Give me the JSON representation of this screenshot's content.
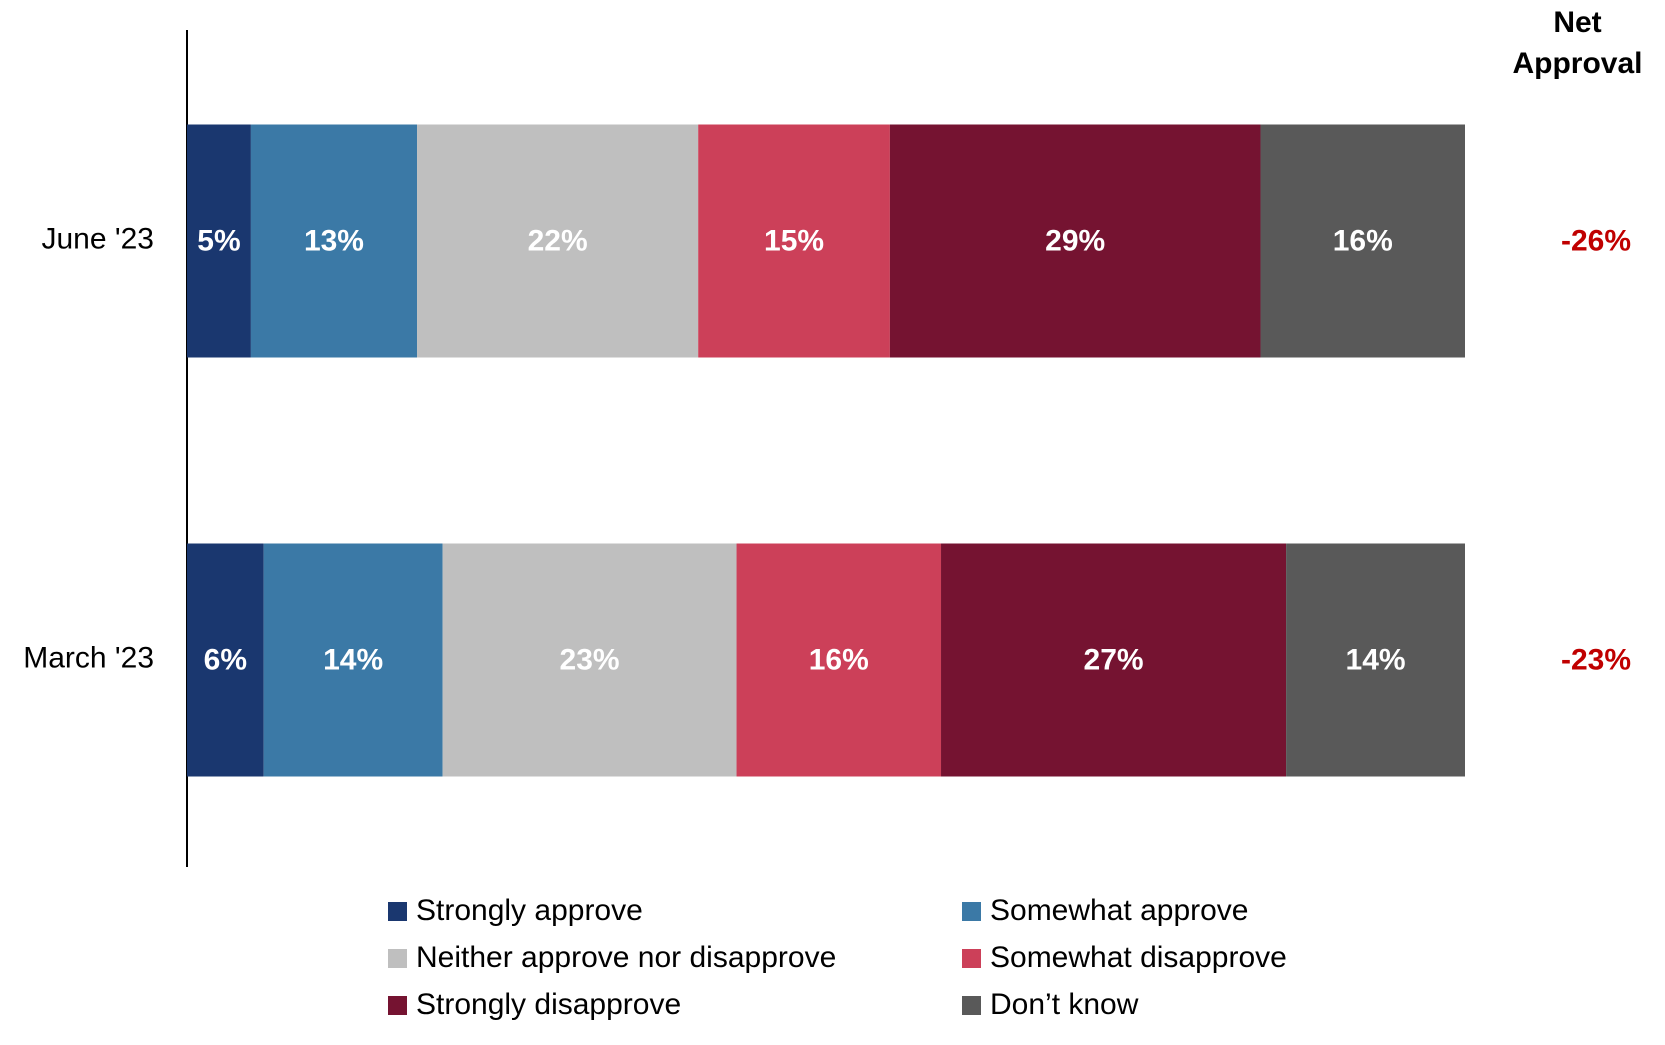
{
  "chart_data": {
    "type": "bar",
    "orientation": "horizontal",
    "stacked": true,
    "title": "",
    "xlabel": "",
    "ylabel": "",
    "xlim": [
      0,
      100
    ],
    "grid": false,
    "legend_position": "bottom",
    "categories": [
      "June '23",
      "March '23"
    ],
    "series": [
      {
        "name": "Strongly approve",
        "color": "#1a376f",
        "values": [
          5,
          6
        ],
        "labels": [
          "5%",
          "6%"
        ]
      },
      {
        "name": "Somewhat approve",
        "color": "#3b79a6",
        "values": [
          13,
          14
        ],
        "labels": [
          "13%",
          "14%"
        ]
      },
      {
        "name": "Neither approve nor disapprove",
        "color": "#bfbfbf",
        "values": [
          22,
          23
        ],
        "labels": [
          "22%",
          "23%"
        ]
      },
      {
        "name": "Somewhat disapprove",
        "color": "#cc4059",
        "values": [
          15,
          16
        ],
        "labels": [
          "15%",
          "16%"
        ]
      },
      {
        "name": "Strongly disapprove",
        "color": "#751331",
        "values": [
          29,
          27
        ],
        "labels": [
          "29%",
          "27%"
        ]
      },
      {
        "name": "Don’t know",
        "color": "#595959",
        "values": [
          16,
          14
        ],
        "labels": [
          "16%",
          "14%"
        ]
      }
    ],
    "net_approval": {
      "header_line1": "Net",
      "header_line2": "Approval",
      "values": [
        "-26%",
        "-23%"
      ],
      "color": "#c00000"
    }
  }
}
